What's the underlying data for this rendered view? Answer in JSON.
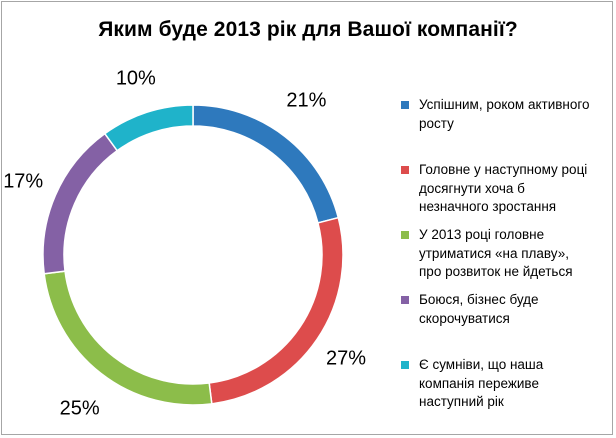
{
  "chart_data": {
    "type": "pie",
    "style": "donut",
    "title": "Яким буде 2013 рік для Вашої компанії?",
    "slices": [
      {
        "label": "Успішним, роком активного росту",
        "value": 21,
        "value_label": "21%",
        "color": "#2e79bd"
      },
      {
        "label": "Головне у наступному році досягнути хоча б незначного зростання",
        "value": 27,
        "value_label": "27%",
        "color": "#dd4c4c"
      },
      {
        "label": "У 2013 році головне утриматися «на плаву», про розвиток не йдеться",
        "value": 25,
        "value_label": "25%",
        "color": "#8cbd4a"
      },
      {
        "label": "Боюся, бізнес буде скорочуватися",
        "value": 17,
        "value_label": "17%",
        "color": "#8461a5"
      },
      {
        "label": "Є сумніви, що наша компанія переживе наступний рік",
        "value": 10,
        "value_label": "10%",
        "color": "#1fb3ca"
      }
    ],
    "legend_position": "right"
  },
  "legend_lines": [
    [
      "Успішним, роком активного",
      "росту"
    ],
    [
      "Головне у наступному році",
      "досягнути хоча б",
      "незначного зростання"
    ],
    [
      "У 2013 році головне",
      "утриматися «на плаву»,",
      "про розвиток не йдеться"
    ],
    [
      "Боюся, бізнес буде",
      "скорочуватися"
    ],
    [
      "Є сумніви, що наша",
      "компанія переживе",
      "наступний рік"
    ]
  ]
}
